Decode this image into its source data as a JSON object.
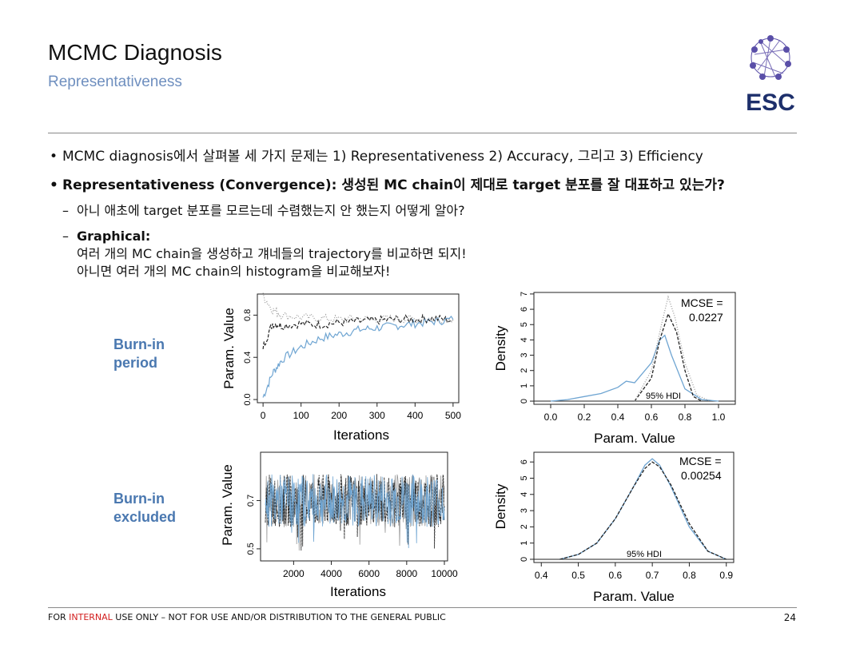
{
  "header": {
    "title": "MCMC Diagnosis",
    "subtitle": "Representativeness",
    "logo_text": "ESC"
  },
  "bullets": {
    "b1": "MCMC diagnosis에서 살펴볼 세 가지 문제는 1) Representativeness 2) Accuracy, 그리고 3) Efficiency",
    "b2": "Representativeness (Convergence): 생성된 MC chain이 제대로 target 분포를 잘 대표하고 있는가?",
    "s1": "아니 애초에 target 분포를 모르는데 수렴했는지 안 했는지 어떻게 알아?",
    "s2_head": "Graphical:",
    "s2_line1": "여러 개의 MC chain을 생성하고 걔네들의 trajectory를 비교하면 되지!",
    "s2_line2": "아니면 여러 개의 MC chain의 histogram을 비교해보자!"
  },
  "row_labels": {
    "burnin_line1": "Burn-in",
    "burnin_line2": "period",
    "excluded_line1": "Burn-in",
    "excluded_line2": "excluded"
  },
  "footer": {
    "prefix": "FOR ",
    "highlight": "INTERNAL",
    "suffix": " USE ONLY – NOT FOR USE AND/OR DISTRIBUTION TO THE GENERAL PUBLIC",
    "page": "24"
  },
  "colors": {
    "blue_series": "#6fa5d2",
    "black_series": "#222222",
    "accent": "#6f8fbf",
    "label_blue": "#4a78b0"
  },
  "chart_data": [
    {
      "type": "line",
      "xlabel": "Iterations",
      "ylabel": "Param. Value",
      "xticks": [
        "0",
        "100",
        "200",
        "300",
        "400",
        "500"
      ],
      "yticks": [
        "0.0",
        "0.4",
        "0.8"
      ],
      "xlim": [
        0,
        500
      ],
      "ylim": [
        0,
        1.0
      ],
      "series": [
        {
          "values": [
            [
              0,
              0.02
            ],
            [
              25,
              0.25
            ],
            [
              50,
              0.38
            ],
            [
              100,
              0.5
            ],
            [
              150,
              0.58
            ],
            [
              200,
              0.62
            ],
            [
              250,
              0.66
            ],
            [
              300,
              0.68
            ],
            [
              350,
              0.7
            ],
            [
              400,
              0.72
            ],
            [
              450,
              0.74
            ],
            [
              500,
              0.76
            ]
          ]
        },
        {
          "values": [
            [
              0,
              0.5
            ],
            [
              25,
              0.72
            ],
            [
              50,
              0.7
            ],
            [
              100,
              0.72
            ],
            [
              150,
              0.71
            ],
            [
              200,
              0.73
            ],
            [
              250,
              0.74
            ],
            [
              300,
              0.75
            ],
            [
              350,
              0.76
            ],
            [
              400,
              0.76
            ],
            [
              450,
              0.77
            ],
            [
              500,
              0.75
            ]
          ]
        },
        {
          "values": [
            [
              0,
              0.98
            ],
            [
              25,
              0.85
            ],
            [
              50,
              0.8
            ],
            [
              100,
              0.78
            ],
            [
              150,
              0.77
            ],
            [
              200,
              0.76
            ],
            [
              250,
              0.77
            ],
            [
              300,
              0.76
            ],
            [
              350,
              0.77
            ],
            [
              400,
              0.76
            ],
            [
              450,
              0.77
            ],
            [
              500,
              0.76
            ]
          ]
        }
      ]
    },
    {
      "type": "area",
      "xlabel": "Param. Value",
      "ylabel": "Density",
      "xticks": [
        "0.0",
        "0.2",
        "0.4",
        "0.6",
        "0.8",
        "1.0"
      ],
      "yticks": [
        "0",
        "1",
        "2",
        "3",
        "4",
        "5",
        "6",
        "7"
      ],
      "xlim": [
        -0.1,
        1.1
      ],
      "ylim": [
        0,
        7
      ],
      "annotation": "MCSE =",
      "annotation_value": "0.0227",
      "hdi_label": "95% HDI",
      "series": [
        {
          "values": [
            [
              0.0,
              0.0
            ],
            [
              0.1,
              0.1
            ],
            [
              0.2,
              0.3
            ],
            [
              0.3,
              0.5
            ],
            [
              0.4,
              0.9
            ],
            [
              0.45,
              1.3
            ],
            [
              0.5,
              1.2
            ],
            [
              0.6,
              2.5
            ],
            [
              0.65,
              4.0
            ],
            [
              0.68,
              4.3
            ],
            [
              0.72,
              3.0
            ],
            [
              0.8,
              0.8
            ],
            [
              0.9,
              0.1
            ],
            [
              1.0,
              0.0
            ]
          ]
        },
        {
          "values": [
            [
              0.5,
              0.0
            ],
            [
              0.6,
              1.5
            ],
            [
              0.65,
              4.0
            ],
            [
              0.7,
              5.7
            ],
            [
              0.75,
              4.5
            ],
            [
              0.8,
              2.0
            ],
            [
              0.85,
              0.3
            ],
            [
              0.9,
              0.0
            ]
          ]
        },
        {
          "values": [
            [
              0.5,
              0.0
            ],
            [
              0.6,
              2.0
            ],
            [
              0.66,
              5.0
            ],
            [
              0.7,
              6.8
            ],
            [
              0.74,
              5.5
            ],
            [
              0.8,
              2.5
            ],
            [
              0.87,
              0.4
            ],
            [
              0.95,
              0.0
            ]
          ]
        }
      ]
    },
    {
      "type": "line",
      "xlabel": "Iterations",
      "ylabel": "Param. Value",
      "xticks": [
        "2000",
        "4000",
        "6000",
        "8000",
        "10000"
      ],
      "yticks": [
        "0.5",
        "0.7"
      ],
      "xlim": [
        500,
        10000
      ],
      "ylim": [
        0.45,
        0.9
      ],
      "series": [
        {
          "values": [
            [
              500,
              0.7
            ],
            [
              10000,
              0.7
            ]
          ]
        },
        {
          "values": [
            [
              500,
              0.71
            ],
            [
              10000,
              0.71
            ]
          ]
        }
      ]
    },
    {
      "type": "area",
      "xlabel": "Param. Value",
      "ylabel": "Density",
      "xticks": [
        "0.4",
        "0.5",
        "0.6",
        "0.7",
        "0.8",
        "0.9"
      ],
      "yticks": [
        "0",
        "1",
        "2",
        "3",
        "4",
        "5",
        "6"
      ],
      "xlim": [
        0.38,
        0.92
      ],
      "ylim": [
        0,
        6.5
      ],
      "annotation": "MCSE =",
      "annotation_value": "0.00254",
      "hdi_label": "95% HDI",
      "series": [
        {
          "values": [
            [
              0.45,
              0.0
            ],
            [
              0.5,
              0.3
            ],
            [
              0.55,
              1.0
            ],
            [
              0.6,
              2.5
            ],
            [
              0.65,
              4.5
            ],
            [
              0.68,
              5.8
            ],
            [
              0.7,
              6.2
            ],
            [
              0.72,
              5.8
            ],
            [
              0.75,
              4.5
            ],
            [
              0.8,
              2.0
            ],
            [
              0.85,
              0.5
            ],
            [
              0.9,
              0.0
            ]
          ]
        },
        {
          "values": [
            [
              0.45,
              0.0
            ],
            [
              0.5,
              0.3
            ],
            [
              0.55,
              1.0
            ],
            [
              0.6,
              2.5
            ],
            [
              0.65,
              4.5
            ],
            [
              0.68,
              5.6
            ],
            [
              0.7,
              6.0
            ],
            [
              0.72,
              5.7
            ],
            [
              0.75,
              4.6
            ],
            [
              0.8,
              2.2
            ],
            [
              0.85,
              0.5
            ],
            [
              0.9,
              0.0
            ]
          ]
        }
      ]
    }
  ]
}
